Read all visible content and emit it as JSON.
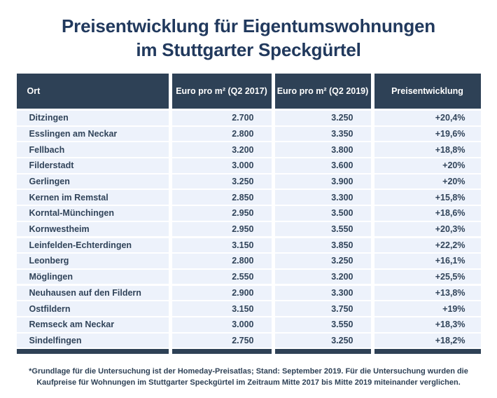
{
  "title": {
    "line1": "Preisentwicklung für Eigentumswohnungen",
    "line2": "im Stuttgarter Speckgürtel"
  },
  "colors": {
    "navy_header": "#2e4156",
    "navy_title": "#21395d",
    "row_background": "#edf2fb",
    "page_background": "#ffffff"
  },
  "table": {
    "columns": [
      "Ort",
      "Euro pro m² (Q2 2017)",
      "Euro pro m² (Q2 2019)",
      "Preisentwicklung"
    ],
    "rows": [
      {
        "ort": "Ditzingen",
        "q2_2017": "2.700",
        "q2_2019": "3.250",
        "change": "+20,4%"
      },
      {
        "ort": "Esslingen am Neckar",
        "q2_2017": "2.800",
        "q2_2019": "3.350",
        "change": "+19,6%"
      },
      {
        "ort": "Fellbach",
        "q2_2017": "3.200",
        "q2_2019": "3.800",
        "change": "+18,8%"
      },
      {
        "ort": "Filderstadt",
        "q2_2017": "3.000",
        "q2_2019": "3.600",
        "change": "+20%"
      },
      {
        "ort": "Gerlingen",
        "q2_2017": "3.250",
        "q2_2019": "3.900",
        "change": "+20%"
      },
      {
        "ort": "Kernen im Remstal",
        "q2_2017": "2.850",
        "q2_2019": "3.300",
        "change": "+15,8%"
      },
      {
        "ort": "Korntal-Münchingen",
        "q2_2017": "2.950",
        "q2_2019": "3.500",
        "change": "+18,6%"
      },
      {
        "ort": "Kornwestheim",
        "q2_2017": "2.950",
        "q2_2019": "3.550",
        "change": "+20,3%"
      },
      {
        "ort": "Leinfelden-Echterdingen",
        "q2_2017": "3.150",
        "q2_2019": "3.850",
        "change": "+22,2%"
      },
      {
        "ort": "Leonberg",
        "q2_2017": "2.800",
        "q2_2019": "3.250",
        "change": "+16,1%"
      },
      {
        "ort": "Möglingen",
        "q2_2017": "2.550",
        "q2_2019": "3.200",
        "change": "+25,5%"
      },
      {
        "ort": "Neuhausen auf den Fildern",
        "q2_2017": "2.900",
        "q2_2019": "3.300",
        "change": "+13,8%"
      },
      {
        "ort": "Ostfildern",
        "q2_2017": "3.150",
        "q2_2019": "3.750",
        "change": "+19%"
      },
      {
        "ort": "Remseck am Neckar",
        "q2_2017": "3.000",
        "q2_2019": "3.550",
        "change": "+18,3%"
      },
      {
        "ort": "Sindelfingen",
        "q2_2017": "2.750",
        "q2_2019": "3.250",
        "change": "+18,2%"
      }
    ]
  },
  "footnote": "*Grundlage für die Untersuchung ist der Homeday-Preisatlas; Stand: September 2019. Für die Untersuchung wurden die Kaufpreise für Wohnungen im Stuttgarter Speckgürtel im Zeitraum Mitte 2017 bis Mitte 2019 miteinander verglichen.",
  "chart_data": {
    "type": "table",
    "title": "Preisentwicklung für Eigentumswohnungen im Stuttgarter Speckgürtel",
    "columns": [
      "Ort",
      "Euro pro m² (Q2 2017)",
      "Euro pro m² (Q2 2019)",
      "Preisentwicklung"
    ],
    "rows": [
      [
        "Ditzingen",
        2700,
        3250,
        "+20,4%"
      ],
      [
        "Esslingen am Neckar",
        2800,
        3350,
        "+19,6%"
      ],
      [
        "Fellbach",
        3200,
        3800,
        "+18,8%"
      ],
      [
        "Filderstadt",
        3000,
        3600,
        "+20%"
      ],
      [
        "Gerlingen",
        3250,
        3900,
        "+20%"
      ],
      [
        "Kernen im Remstal",
        2850,
        3300,
        "+15,8%"
      ],
      [
        "Korntal-Münchingen",
        2950,
        3500,
        "+18,6%"
      ],
      [
        "Kornwestheim",
        2950,
        3550,
        "+20,3%"
      ],
      [
        "Leinfelden-Echterdingen",
        3150,
        3850,
        "+22,2%"
      ],
      [
        "Leonberg",
        2800,
        3250,
        "+16,1%"
      ],
      [
        "Möglingen",
        2550,
        3200,
        "+25,5%"
      ],
      [
        "Neuhausen auf den Fildern",
        2900,
        3300,
        "+13,8%"
      ],
      [
        "Ostfildern",
        3150,
        3750,
        "+19%"
      ],
      [
        "Remseck am Neckar",
        3000,
        3550,
        "+18,3%"
      ],
      [
        "Sindelfingen",
        2750,
        3250,
        "+18,2%"
      ]
    ],
    "source_note": "*Grundlage für die Untersuchung ist der Homeday-Preisatlas; Stand: September 2019. Für die Untersuchung wurden die Kaufpreise für Wohnungen im Stuttgarter Speckgürtel im Zeitraum Mitte 2017 bis Mitte 2019 miteinander verglichen."
  }
}
